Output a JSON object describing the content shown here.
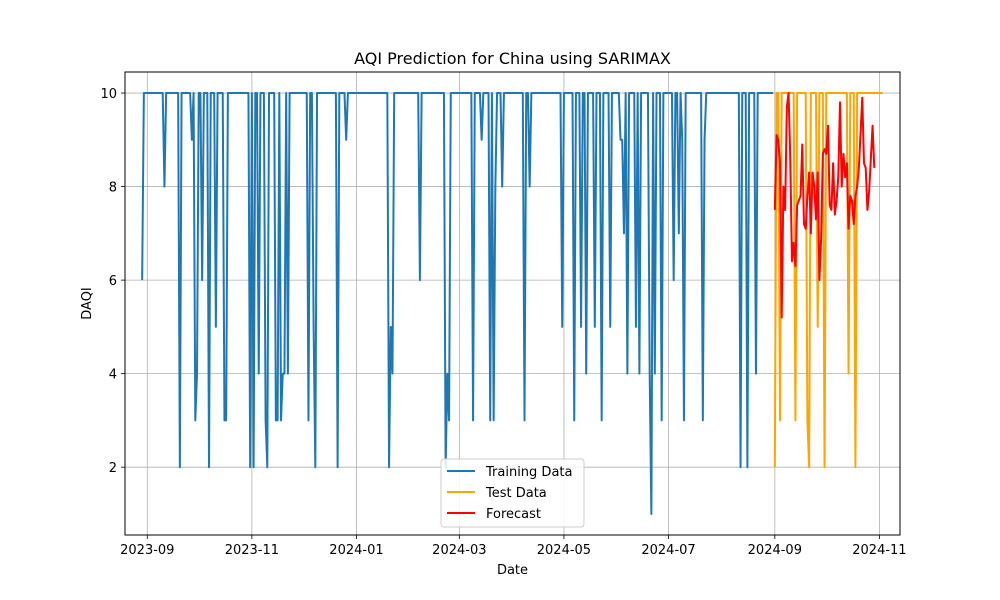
{
  "chart_data": {
    "type": "line",
    "title": "AQI Prediction for China using SARIMAX",
    "xlabel": "Date",
    "ylabel": "DAQI",
    "x_type": "date",
    "xlim": [
      "2023-08-19",
      "2024-11-13"
    ],
    "ylim": [
      0.55,
      10.45
    ],
    "x_ticks": [
      "2023-09-01",
      "2023-11-01",
      "2024-01-01",
      "2024-03-01",
      "2024-05-01",
      "2024-07-01",
      "2024-09-01",
      "2024-11-01"
    ],
    "x_tick_labels": [
      "2023-09",
      "2023-11",
      "2024-01",
      "2024-03",
      "2024-05",
      "2024-07",
      "2024-09",
      "2024-11"
    ],
    "y_ticks": [
      2,
      4,
      6,
      8,
      10
    ],
    "y_tick_labels": [
      "2",
      "4",
      "6",
      "8",
      "10"
    ],
    "grid": true,
    "legend_position": "bottom-center",
    "series": [
      {
        "name": "Training Data",
        "color": "#1f77b4",
        "points": [
          [
            "2023-08-29",
            6
          ],
          [
            "2023-08-30",
            10
          ],
          [
            "2023-09-10",
            10
          ],
          [
            "2023-09-11",
            8
          ],
          [
            "2023-09-12",
            10
          ],
          [
            "2023-09-19",
            10
          ],
          [
            "2023-09-20",
            2
          ],
          [
            "2023-09-21",
            10
          ],
          [
            "2023-09-26",
            10
          ],
          [
            "2023-09-27",
            9
          ],
          [
            "2023-09-28",
            10
          ],
          [
            "2023-09-29",
            3
          ],
          [
            "2023-09-30",
            4
          ],
          [
            "2023-10-01",
            10
          ],
          [
            "2023-10-02",
            10
          ],
          [
            "2023-10-03",
            6
          ],
          [
            "2023-10-04",
            10
          ],
          [
            "2023-10-06",
            10
          ],
          [
            "2023-10-07",
            2
          ],
          [
            "2023-10-08",
            10
          ],
          [
            "2023-10-10",
            10
          ],
          [
            "2023-10-11",
            5
          ],
          [
            "2023-10-12",
            10
          ],
          [
            "2023-10-15",
            10
          ],
          [
            "2023-10-16",
            3
          ],
          [
            "2023-10-17",
            3
          ],
          [
            "2023-10-18",
            10
          ],
          [
            "2023-10-30",
            10
          ],
          [
            "2023-10-31",
            2
          ],
          [
            "2023-11-01",
            10
          ],
          [
            "2023-11-02",
            2
          ],
          [
            "2023-11-03",
            10
          ],
          [
            "2023-11-04",
            10
          ],
          [
            "2023-11-05",
            4
          ],
          [
            "2023-11-06",
            10
          ],
          [
            "2023-11-08",
            10
          ],
          [
            "2023-11-09",
            3
          ],
          [
            "2023-11-10",
            2
          ],
          [
            "2023-11-11",
            10
          ],
          [
            "2023-11-14",
            10
          ],
          [
            "2023-11-15",
            3
          ],
          [
            "2023-11-16",
            3
          ],
          [
            "2023-11-17",
            10
          ],
          [
            "2023-11-18",
            3
          ],
          [
            "2023-11-19",
            4
          ],
          [
            "2023-11-20",
            4
          ],
          [
            "2023-11-21",
            10
          ],
          [
            "2023-11-22",
            4
          ],
          [
            "2023-11-23",
            10
          ],
          [
            "2023-12-03",
            10
          ],
          [
            "2023-12-04",
            3
          ],
          [
            "2023-12-05",
            10
          ],
          [
            "2023-12-06",
            10
          ],
          [
            "2023-12-07",
            5
          ],
          [
            "2023-12-08",
            2
          ],
          [
            "2023-12-09",
            10
          ],
          [
            "2023-12-20",
            10
          ],
          [
            "2023-12-21",
            2
          ],
          [
            "2023-12-22",
            10
          ],
          [
            "2023-12-25",
            10
          ],
          [
            "2023-12-26",
            9
          ],
          [
            "2023-12-27",
            10
          ],
          [
            "2024-01-19",
            10
          ],
          [
            "2024-01-20",
            2
          ],
          [
            "2024-01-21",
            5
          ],
          [
            "2024-01-22",
            4
          ],
          [
            "2024-01-23",
            10
          ],
          [
            "2024-02-06",
            10
          ],
          [
            "2024-02-07",
            6
          ],
          [
            "2024-02-08",
            10
          ],
          [
            "2024-02-21",
            10
          ],
          [
            "2024-02-22",
            2
          ],
          [
            "2024-02-23",
            4
          ],
          [
            "2024-02-24",
            3
          ],
          [
            "2024-02-25",
            10
          ],
          [
            "2024-03-08",
            10
          ],
          [
            "2024-03-09",
            3
          ],
          [
            "2024-03-10",
            10
          ],
          [
            "2024-03-13",
            10
          ],
          [
            "2024-03-14",
            9
          ],
          [
            "2024-03-15",
            10
          ],
          [
            "2024-03-18",
            10
          ],
          [
            "2024-03-19",
            3
          ],
          [
            "2024-03-20",
            10
          ],
          [
            "2024-03-21",
            3
          ],
          [
            "2024-03-22",
            8
          ],
          [
            "2024-03-23",
            10
          ],
          [
            "2024-03-25",
            10
          ],
          [
            "2024-03-26",
            8
          ],
          [
            "2024-03-27",
            10
          ],
          [
            "2024-04-07",
            10
          ],
          [
            "2024-04-08",
            3
          ],
          [
            "2024-04-09",
            10
          ],
          [
            "2024-04-10",
            10
          ],
          [
            "2024-04-11",
            8
          ],
          [
            "2024-04-12",
            10
          ],
          [
            "2024-04-29",
            10
          ],
          [
            "2024-04-30",
            5
          ],
          [
            "2024-05-01",
            10
          ],
          [
            "2024-05-06",
            10
          ],
          [
            "2024-05-07",
            3
          ],
          [
            "2024-05-08",
            10
          ],
          [
            "2024-05-10",
            10
          ],
          [
            "2024-05-11",
            5
          ],
          [
            "2024-05-12",
            10
          ],
          [
            "2024-05-13",
            10
          ],
          [
            "2024-05-14",
            4
          ],
          [
            "2024-05-15",
            10
          ],
          [
            "2024-05-18",
            10
          ],
          [
            "2024-05-19",
            5
          ],
          [
            "2024-05-20",
            10
          ],
          [
            "2024-05-22",
            10
          ],
          [
            "2024-05-23",
            3
          ],
          [
            "2024-05-24",
            10
          ],
          [
            "2024-05-27",
            10
          ],
          [
            "2024-05-28",
            5
          ],
          [
            "2024-05-29",
            10
          ],
          [
            "2024-06-02",
            10
          ],
          [
            "2024-06-03",
            9
          ],
          [
            "2024-06-04",
            9
          ],
          [
            "2024-06-05",
            7
          ],
          [
            "2024-06-06",
            10
          ],
          [
            "2024-06-07",
            4
          ],
          [
            "2024-06-08",
            10
          ],
          [
            "2024-06-11",
            10
          ],
          [
            "2024-06-12",
            5
          ],
          [
            "2024-06-13",
            10
          ],
          [
            "2024-06-14",
            4
          ],
          [
            "2024-06-15",
            10
          ],
          [
            "2024-06-19",
            10
          ],
          [
            "2024-06-20",
            4
          ],
          [
            "2024-06-21",
            1
          ],
          [
            "2024-06-22",
            10
          ],
          [
            "2024-06-23",
            4
          ],
          [
            "2024-06-24",
            10
          ],
          [
            "2024-06-26",
            10
          ],
          [
            "2024-06-27",
            3
          ],
          [
            "2024-06-28",
            10
          ],
          [
            "2024-07-03",
            10
          ],
          [
            "2024-07-04",
            6
          ],
          [
            "2024-07-05",
            10
          ],
          [
            "2024-07-06",
            10
          ],
          [
            "2024-07-07",
            7
          ],
          [
            "2024-07-08",
            10
          ],
          [
            "2024-07-09",
            9
          ],
          [
            "2024-07-10",
            3
          ],
          [
            "2024-07-11",
            10
          ],
          [
            "2024-07-20",
            10
          ],
          [
            "2024-07-21",
            3
          ],
          [
            "2024-07-22",
            9
          ],
          [
            "2024-07-23",
            10
          ],
          [
            "2024-08-11",
            10
          ],
          [
            "2024-08-12",
            2
          ],
          [
            "2024-08-13",
            10
          ],
          [
            "2024-08-15",
            10
          ],
          [
            "2024-08-16",
            2
          ],
          [
            "2024-08-17",
            10
          ],
          [
            "2024-08-20",
            10
          ],
          [
            "2024-08-21",
            4
          ],
          [
            "2024-08-22",
            10
          ],
          [
            "2024-08-31",
            10
          ]
        ]
      },
      {
        "name": "Test Data",
        "color": "#ffa500",
        "points": [
          [
            "2024-09-01",
            2
          ],
          [
            "2024-09-02",
            10
          ],
          [
            "2024-09-03",
            10
          ],
          [
            "2024-09-04",
            3
          ],
          [
            "2024-09-05",
            10
          ],
          [
            "2024-09-12",
            10
          ],
          [
            "2024-09-13",
            3
          ],
          [
            "2024-09-14",
            10
          ],
          [
            "2024-09-19",
            10
          ],
          [
            "2024-09-20",
            3
          ],
          [
            "2024-09-21",
            2
          ],
          [
            "2024-09-22",
            10
          ],
          [
            "2024-09-25",
            10
          ],
          [
            "2024-09-26",
            5
          ],
          [
            "2024-09-27",
            10
          ],
          [
            "2024-09-29",
            10
          ],
          [
            "2024-09-30",
            2
          ],
          [
            "2024-10-01",
            10
          ],
          [
            "2024-10-13",
            10
          ],
          [
            "2024-10-14",
            4
          ],
          [
            "2024-10-15",
            10
          ],
          [
            "2024-10-17",
            10
          ],
          [
            "2024-10-18",
            2
          ],
          [
            "2024-10-19",
            10
          ],
          [
            "2024-11-03",
            10
          ]
        ]
      },
      {
        "name": "Forecast",
        "color": "#ff0000",
        "points": [
          [
            "2024-09-01",
            7.5
          ],
          [
            "2024-09-02",
            9.1
          ],
          [
            "2024-09-03",
            9.0
          ],
          [
            "2024-09-04",
            8.5
          ],
          [
            "2024-09-05",
            5.2
          ],
          [
            "2024-09-06",
            8.0
          ],
          [
            "2024-09-07",
            7.5
          ],
          [
            "2024-09-08",
            9.7
          ],
          [
            "2024-09-09",
            10.0
          ],
          [
            "2024-09-10",
            8.6
          ],
          [
            "2024-09-11",
            6.4
          ],
          [
            "2024-09-12",
            6.8
          ],
          [
            "2024-09-13",
            6.3
          ],
          [
            "2024-09-14",
            7.6
          ],
          [
            "2024-09-16",
            7.8
          ],
          [
            "2024-09-17",
            8.9
          ],
          [
            "2024-09-18",
            7.2
          ],
          [
            "2024-09-19",
            7.1
          ],
          [
            "2024-09-20",
            7.8
          ],
          [
            "2024-09-21",
            8.3
          ],
          [
            "2024-09-22",
            7.0
          ],
          [
            "2024-09-23",
            8.3
          ],
          [
            "2024-09-24",
            8.0
          ],
          [
            "2024-09-25",
            7.3
          ],
          [
            "2024-09-26",
            8.3
          ],
          [
            "2024-09-27",
            6.0
          ],
          [
            "2024-09-28",
            6.9
          ],
          [
            "2024-09-29",
            8.7
          ],
          [
            "2024-09-30",
            8.8
          ],
          [
            "2024-10-01",
            8.7
          ],
          [
            "2024-10-02",
            9.3
          ],
          [
            "2024-10-03",
            7.6
          ],
          [
            "2024-10-04",
            7.5
          ],
          [
            "2024-10-05",
            8.5
          ],
          [
            "2024-10-06",
            7.4
          ],
          [
            "2024-10-07",
            7.7
          ],
          [
            "2024-10-08",
            8.2
          ],
          [
            "2024-10-09",
            9.8
          ],
          [
            "2024-10-10",
            8.0
          ],
          [
            "2024-10-11",
            8.7
          ],
          [
            "2024-10-12",
            8.2
          ],
          [
            "2024-10-13",
            8.5
          ],
          [
            "2024-10-14",
            7.1
          ],
          [
            "2024-10-15",
            7.8
          ],
          [
            "2024-10-16",
            7.7
          ],
          [
            "2024-10-17",
            7.2
          ],
          [
            "2024-10-18",
            7.8
          ],
          [
            "2024-10-19",
            8.0
          ],
          [
            "2024-10-20",
            8.4
          ],
          [
            "2024-10-22",
            9.9
          ],
          [
            "2024-10-23",
            8.5
          ],
          [
            "2024-10-24",
            8.4
          ],
          [
            "2024-10-25",
            7.5
          ],
          [
            "2024-10-26",
            7.9
          ],
          [
            "2024-10-27",
            8.6
          ],
          [
            "2024-10-28",
            9.3
          ],
          [
            "2024-10-29",
            8.4
          ]
        ]
      }
    ]
  }
}
